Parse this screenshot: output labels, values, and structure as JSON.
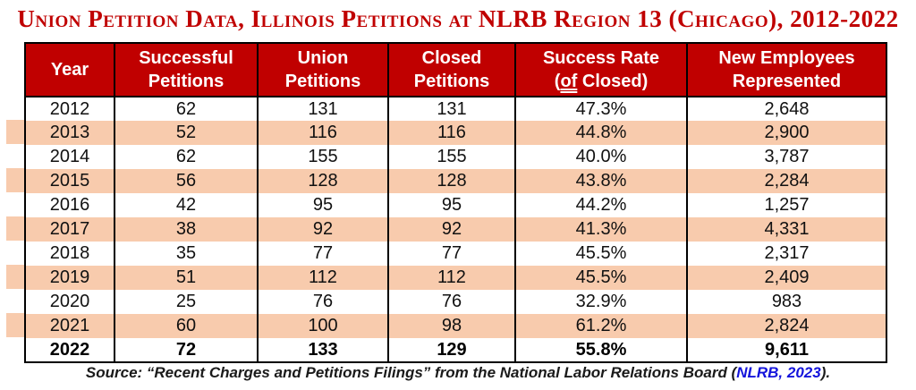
{
  "title": "Union Petition Data, Illinois Petitions at NLRB Region 13 (Chicago), 2012-2022",
  "colors": {
    "header_background": "#C00000",
    "title_red": "#C00000",
    "row_shade_peach": "#F8CBAD",
    "link_blue": "#1414DC",
    "border_black": "#000000"
  },
  "table": {
    "columns": [
      {
        "id": "year",
        "lines": [
          [
            {
              "t": "Year"
            }
          ]
        ]
      },
      {
        "id": "successful",
        "lines": [
          [
            {
              "t": "Successful"
            }
          ],
          [
            {
              "t": "Petitions"
            }
          ]
        ]
      },
      {
        "id": "union",
        "lines": [
          [
            {
              "t": "Union"
            }
          ],
          [
            {
              "t": "Petitions"
            }
          ]
        ]
      },
      {
        "id": "closed",
        "lines": [
          [
            {
              "t": "Closed"
            }
          ],
          [
            {
              "t": "Petitions"
            }
          ]
        ]
      },
      {
        "id": "success-rate",
        "lines": [
          [
            {
              "t": "Success Rate"
            }
          ],
          [
            {
              "t": "("
            },
            {
              "t": "of",
              "u": true
            },
            {
              "t": " Closed)"
            }
          ]
        ]
      },
      {
        "id": "new-employees",
        "lines": [
          [
            {
              "t": "New Employees"
            }
          ],
          [
            {
              "t": "Represented"
            }
          ]
        ]
      }
    ],
    "rows": [
      {
        "values": [
          "2012",
          "62",
          "131",
          "131",
          "47.3%",
          "2,648"
        ],
        "shaded": false,
        "bold": false
      },
      {
        "values": [
          "2013",
          "52",
          "116",
          "116",
          "44.8%",
          "2,900"
        ],
        "shaded": true,
        "bold": false
      },
      {
        "values": [
          "2014",
          "62",
          "155",
          "155",
          "40.0%",
          "3,787"
        ],
        "shaded": false,
        "bold": false
      },
      {
        "values": [
          "2015",
          "56",
          "128",
          "128",
          "43.8%",
          "2,284"
        ],
        "shaded": true,
        "bold": false
      },
      {
        "values": [
          "2016",
          "42",
          "95",
          "95",
          "44.2%",
          "1,257"
        ],
        "shaded": false,
        "bold": false
      },
      {
        "values": [
          "2017",
          "38",
          "92",
          "92",
          "41.3%",
          "4,331"
        ],
        "shaded": true,
        "bold": false
      },
      {
        "values": [
          "2018",
          "35",
          "77",
          "77",
          "45.5%",
          "2,317"
        ],
        "shaded": false,
        "bold": false
      },
      {
        "values": [
          "2019",
          "51",
          "112",
          "112",
          "45.5%",
          "2,409"
        ],
        "shaded": true,
        "bold": false
      },
      {
        "values": [
          "2020",
          "25",
          "76",
          "76",
          "32.9%",
          "983"
        ],
        "shaded": false,
        "bold": false
      },
      {
        "values": [
          "2021",
          "60",
          "100",
          "98",
          "61.2%",
          "2,824"
        ],
        "shaded": true,
        "bold": false
      },
      {
        "values": [
          "2022",
          "72",
          "133",
          "129",
          "55.8%",
          "9,611"
        ],
        "shaded": false,
        "bold": true
      }
    ]
  },
  "source": {
    "prefix": "Source: “Recent Charges and Petitions Filings” from the National Labor Relations Board (",
    "link_text": "NLRB, 2023",
    "suffix": ")."
  },
  "chart_data": {
    "type": "table",
    "title": "Union Petition Data, Illinois Petitions at NLRB Region 13 (Chicago), 2012-2022",
    "columns": [
      "Year",
      "Successful Petitions",
      "Union Petitions",
      "Closed Petitions",
      "Success Rate (of Closed)",
      "New Employees Represented"
    ],
    "rows": [
      [
        2012,
        62,
        131,
        131,
        "47.3%",
        2648
      ],
      [
        2013,
        52,
        116,
        116,
        "44.8%",
        2900
      ],
      [
        2014,
        62,
        155,
        155,
        "40.0%",
        3787
      ],
      [
        2015,
        56,
        128,
        128,
        "43.8%",
        2284
      ],
      [
        2016,
        42,
        95,
        95,
        "44.2%",
        1257
      ],
      [
        2017,
        38,
        92,
        92,
        "41.3%",
        4331
      ],
      [
        2018,
        35,
        77,
        77,
        "45.5%",
        2317
      ],
      [
        2019,
        51,
        112,
        112,
        "45.5%",
        2409
      ],
      [
        2020,
        25,
        76,
        76,
        "32.9%",
        983
      ],
      [
        2021,
        60,
        100,
        98,
        "61.2%",
        2824
      ],
      [
        2022,
        72,
        133,
        129,
        "55.8%",
        9611
      ]
    ],
    "shaded_year_rows": [
      2013,
      2015,
      2017,
      2019,
      2021
    ],
    "bold_year_rows": [
      2022
    ],
    "source": "Source: “Recent Charges and Petitions Filings” from the National Labor Relations Board (NLRB, 2023)."
  }
}
